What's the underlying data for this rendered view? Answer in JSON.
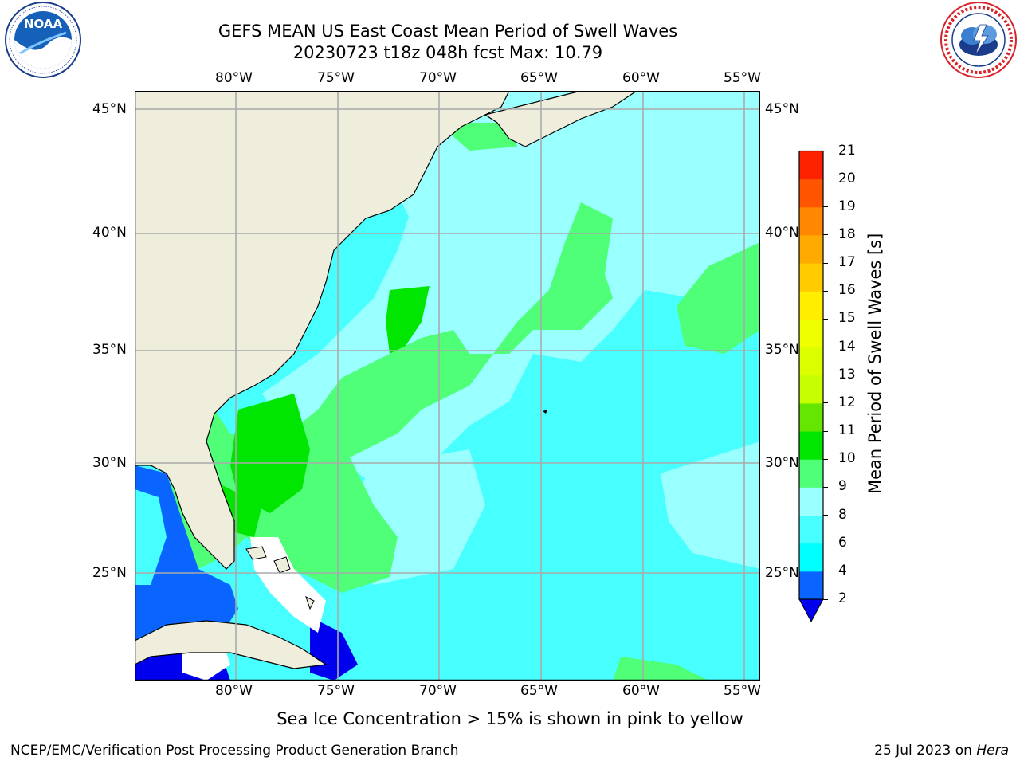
{
  "title": {
    "line1": "GEFS MEAN US East Coast Mean Period of Swell Waves",
    "line2": "20230723 t18z 048h fcst   Max: 10.79"
  },
  "logos": {
    "left": {
      "name": "noaa-logo",
      "text": "NOAA",
      "ring_text": "NATIONAL OCEANIC AND ATMOSPHERIC ADMINISTRATION · U.S. DEPARTMENT OF COMMERCE"
    },
    "right": {
      "name": "nws-logo",
      "ring_text": "NATIONAL WEATHER SERVICE"
    }
  },
  "map": {
    "lon_labels": [
      "80°W",
      "75°W",
      "70°W",
      "65°W",
      "60°W",
      "55°W"
    ],
    "lat_labels": [
      "45°N",
      "40°N",
      "35°N",
      "30°N",
      "25°N"
    ],
    "gridlines": true,
    "land_color": "#efeedc",
    "gridline_color": "#aaaaaa"
  },
  "colorbar": {
    "label": "Mean Period of Swell Waves [s]",
    "ticks": [
      "2",
      "4",
      "6",
      "8",
      "9",
      "10",
      "11",
      "12",
      "13",
      "14",
      "15",
      "16",
      "17",
      "18",
      "19",
      "20",
      "21"
    ],
    "colors": [
      "#0a64ff",
      "#00ffff",
      "#48ffff",
      "#99ffff",
      "#50ff78",
      "#00e600",
      "#64e600",
      "#c8ff00",
      "#dcff00",
      "#f0ff00",
      "#ffee00",
      "#ffcc00",
      "#ffaa00",
      "#ff8800",
      "#ff5500",
      "#ff2200",
      "#ff0000"
    ],
    "under_color": "#0000ee",
    "extend": "min"
  },
  "footer": {
    "note": "Sea Ice Concentration > 15% is shown in pink to yellow",
    "credit": "NCEP/EMC/Verification Post Processing Product Generation Branch",
    "date_prefix": "25 Jul 2023 on ",
    "date_host": "Hera"
  }
}
